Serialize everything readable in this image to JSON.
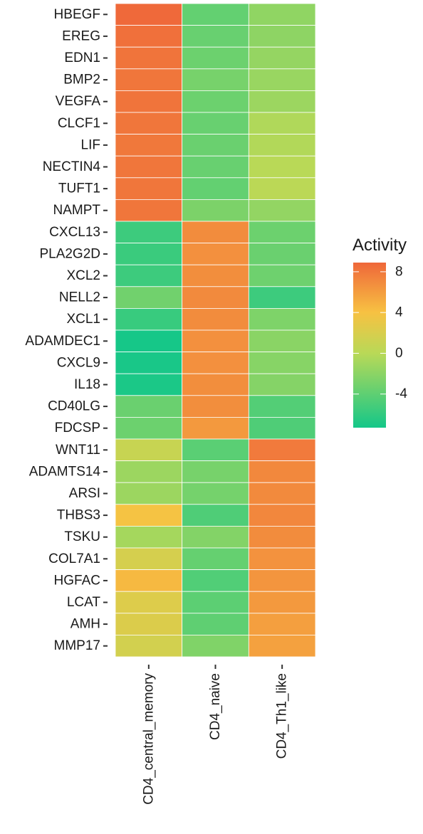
{
  "chart_data": {
    "type": "heatmap",
    "title": "",
    "xlabel": "",
    "ylabel": "",
    "columns": [
      "CD4_central_memory",
      "CD4_naive",
      "CD4_Th1_like"
    ],
    "rows": [
      "HBEGF",
      "EREG",
      "EDN1",
      "BMP2",
      "VEGFA",
      "CLCF1",
      "LIF",
      "NECTIN4",
      "TUFT1",
      "NAMPT",
      "CXCL13",
      "PLA2G2D",
      "XCL2",
      "NELL2",
      "XCL1",
      "ADAMDEC1",
      "CXCL9",
      "IL18",
      "CD40LG",
      "FDCSP",
      "WNT11",
      "ADAMTS14",
      "ARSI",
      "THBS3",
      "TSKU",
      "COL7A1",
      "HGFAC",
      "LCAT",
      "AMH",
      "MMP17"
    ],
    "values": [
      [
        8.8,
        -3.8,
        -1.8
      ],
      [
        8.4,
        -3.6,
        -1.9
      ],
      [
        8.2,
        -3.4,
        -1.6
      ],
      [
        8.1,
        -2.9,
        -1.4
      ],
      [
        8.2,
        -3.4,
        -1.3
      ],
      [
        8.1,
        -3.6,
        -0.4
      ],
      [
        8.0,
        -3.5,
        -0.3
      ],
      [
        8.1,
        -3.6,
        0.0
      ],
      [
        8.1,
        -3.8,
        0.1
      ],
      [
        8.1,
        -2.7,
        -1.7
      ],
      [
        -5.5,
        6.9,
        -3.4
      ],
      [
        -5.6,
        6.7,
        -3.5
      ],
      [
        -5.5,
        6.8,
        -3.3
      ],
      [
        -3.2,
        7.0,
        -5.5
      ],
      [
        -5.7,
        6.9,
        -2.6
      ],
      [
        -7.2,
        6.7,
        -2.1
      ],
      [
        -7.1,
        6.7,
        -2.2
      ],
      [
        -7.0,
        6.8,
        -2.3
      ],
      [
        -3.5,
        6.8,
        -4.5
      ],
      [
        -3.4,
        6.2,
        -4.7
      ],
      [
        0.9,
        -4.2,
        7.9
      ],
      [
        -1.3,
        -2.9,
        7.1
      ],
      [
        -1.3,
        -3.0,
        7.0
      ],
      [
        3.9,
        -4.7,
        7.2
      ],
      [
        -0.9,
        -2.4,
        6.9
      ],
      [
        1.8,
        -3.7,
        6.6
      ],
      [
        4.5,
        -4.6,
        6.4
      ],
      [
        2.3,
        -4.1,
        6.2
      ],
      [
        2.2,
        -4.0,
        5.9
      ],
      [
        1.6,
        -2.5,
        5.8
      ]
    ],
    "legend": {
      "title": "Activity",
      "ticks": [
        8,
        4,
        0,
        -4
      ],
      "tick_labels": [
        "8",
        "4",
        "0",
        "-4"
      ],
      "range": [
        -7.3,
        8.9
      ],
      "placement": "right"
    },
    "colors": {
      "low": "#14c789",
      "mid": "#b9d957",
      "mid_high": "#f7c242",
      "high": "#ef673a"
    },
    "grid": false
  }
}
